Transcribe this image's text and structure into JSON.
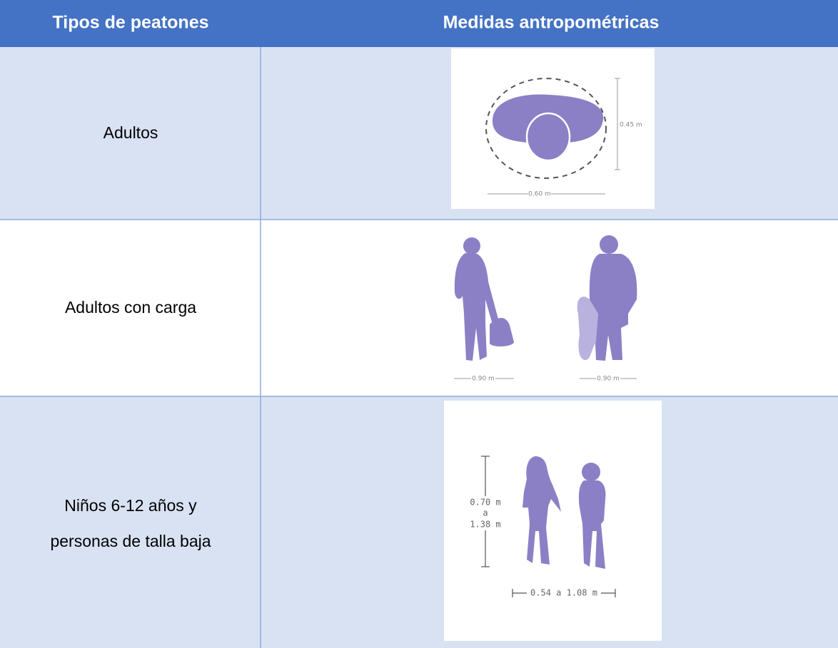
{
  "table": {
    "header": [
      "Tipos de peatones",
      "Medidas antropométricas"
    ],
    "rows": [
      {
        "label": [
          "Adultos"
        ],
        "figure_labels": [
          "0.45 m",
          "0.60 m"
        ]
      },
      {
        "label": [
          "Adultos con carga"
        ],
        "figure_labels": [
          "0.90 m",
          "0.90 m"
        ]
      },
      {
        "label": [
          "Niños 6-12 años y",
          "personas de talla baja"
        ],
        "figure_labels": [
          "0.70 m",
          "a",
          "1.38 m",
          "0.54 a 1.08 m"
        ]
      }
    ]
  }
}
